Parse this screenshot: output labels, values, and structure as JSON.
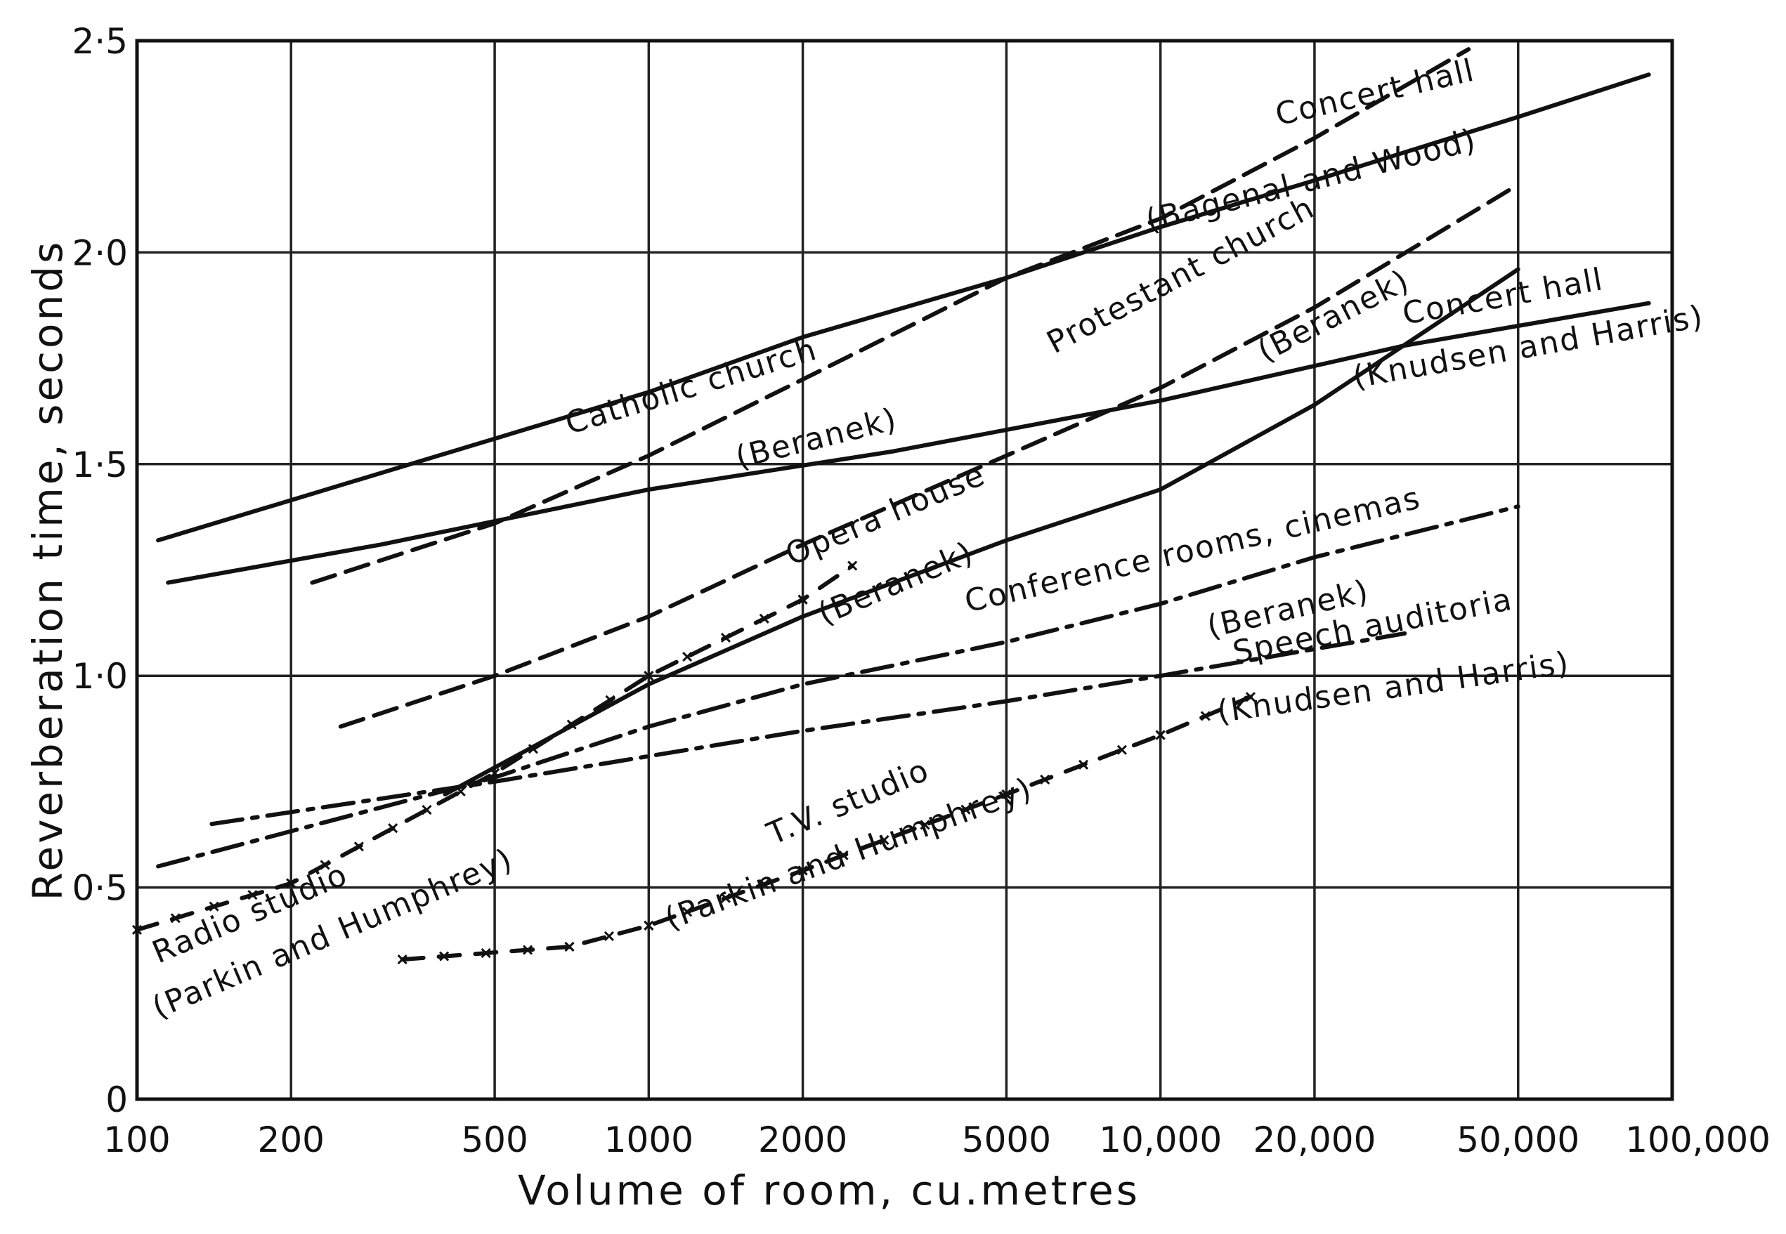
{
  "chart_data": {
    "type": "line",
    "xlabel": "Volume of room, cu.metres",
    "ylabel": "Reverberation time, seconds",
    "x_scale": "log",
    "xlim": [
      100,
      100000
    ],
    "ylim": [
      0,
      2.5
    ],
    "grid": true,
    "x_ticks": [
      {
        "value": 100,
        "label": "100"
      },
      {
        "value": 200,
        "label": "200"
      },
      {
        "value": 500,
        "label": "500"
      },
      {
        "value": 1000,
        "label": "1000"
      },
      {
        "value": 2000,
        "label": "2000"
      },
      {
        "value": 5000,
        "label": "5000"
      },
      {
        "value": 10000,
        "label": "10,000"
      },
      {
        "value": 20000,
        "label": "20,000"
      },
      {
        "value": 50000,
        "label": "50,000"
      },
      {
        "value": 100000,
        "label": "100,000"
      }
    ],
    "y_ticks": [
      {
        "value": 0,
        "label": "0"
      },
      {
        "value": 0.5,
        "label": "0·5"
      },
      {
        "value": 1.0,
        "label": "1·0"
      },
      {
        "value": 1.5,
        "label": "1·5"
      },
      {
        "value": 2.0,
        "label": "2·0"
      },
      {
        "value": 2.5,
        "label": "2·5"
      }
    ],
    "series": [
      {
        "id": "concert-hall-bagenal-wood",
        "style": "solid",
        "x": [
          110,
          500,
          1000,
          2000,
          5000,
          10000,
          20000,
          50000,
          90000
        ],
        "y": [
          1.32,
          1.56,
          1.67,
          1.8,
          1.94,
          2.06,
          2.17,
          2.32,
          2.42
        ]
      },
      {
        "id": "catholic-church-beranek",
        "style": "dashed",
        "x": [
          220,
          500,
          1000,
          2000,
          5000,
          10000,
          20000,
          40000
        ],
        "y": [
          1.22,
          1.36,
          1.52,
          1.7,
          1.94,
          2.08,
          2.27,
          2.48
        ]
      },
      {
        "id": "concert-hall-knudsen-harris",
        "style": "solid",
        "x": [
          115,
          300,
          1000,
          3000,
          10000,
          30000,
          90000
        ],
        "y": [
          1.22,
          1.31,
          1.44,
          1.53,
          1.65,
          1.78,
          1.88
        ]
      },
      {
        "id": "protestant-church-beranek",
        "style": "dashed",
        "x": [
          250,
          500,
          1000,
          2000,
          5000,
          10000,
          20000,
          50000
        ],
        "y": [
          0.88,
          1.0,
          1.14,
          1.31,
          1.52,
          1.68,
          1.87,
          2.16
        ]
      },
      {
        "id": "opera-house-beranek",
        "style": "solid",
        "x": [
          400,
          1000,
          2000,
          5000,
          10000,
          20000,
          50000
        ],
        "y": [
          0.72,
          0.98,
          1.14,
          1.32,
          1.44,
          1.64,
          1.96
        ]
      },
      {
        "id": "conference-rooms-cinemas-beranek",
        "style": "dashdot",
        "x": [
          110,
          500,
          1000,
          2000,
          5000,
          10000,
          20000,
          50000
        ],
        "y": [
          0.55,
          0.76,
          0.88,
          0.98,
          1.08,
          1.17,
          1.28,
          1.4
        ]
      },
      {
        "id": "speech-auditoria-knudsen-harris",
        "style": "dashdot",
        "x": [
          140,
          500,
          1000,
          2000,
          5000,
          10000,
          30000
        ],
        "y": [
          0.65,
          0.75,
          0.81,
          0.87,
          0.94,
          1.0,
          1.1
        ]
      },
      {
        "id": "radio-studio-parkin-humphrey",
        "style": "dash-x",
        "x": [
          100,
          200,
          500,
          1000,
          2000,
          2500
        ],
        "y": [
          0.4,
          0.51,
          0.77,
          1.0,
          1.18,
          1.26
        ]
      },
      {
        "id": "tv-studio-parkin-humphrey",
        "style": "dash-x",
        "x": [
          330,
          700,
          1000,
          2000,
          5000,
          10000,
          15000
        ],
        "y": [
          0.33,
          0.36,
          0.41,
          0.54,
          0.72,
          0.86,
          0.95
        ]
      }
    ],
    "annotations": [
      {
        "text": "Concert hall",
        "x": 17000,
        "y": 2.3,
        "angle": -13
      },
      {
        "text": "(Bagenal and Wood)",
        "x": 9500,
        "y": 2.05,
        "angle": -14
      },
      {
        "text": "Catholic church",
        "x": 700,
        "y": 1.57,
        "angle": -17
      },
      {
        "text": "(Beranek)",
        "x": 1500,
        "y": 1.49,
        "angle": -14
      },
      {
        "text": "Protestant church",
        "x": 6200,
        "y": 1.76,
        "angle": -28
      },
      {
        "text": "(Beranek)",
        "x": 16000,
        "y": 1.74,
        "angle": -27
      },
      {
        "text": "Concert hall",
        "x": 30000,
        "y": 1.83,
        "angle": -10
      },
      {
        "text": "(Knudsen and Harris)",
        "x": 24000,
        "y": 1.68,
        "angle": -10
      },
      {
        "text": "Opera house",
        "x": 1900,
        "y": 1.26,
        "angle": -23
      },
      {
        "text": "(Beranek)",
        "x": 2200,
        "y": 1.12,
        "angle": -23
      },
      {
        "text": "Conference rooms, cinemas",
        "x": 4200,
        "y": 1.15,
        "angle": -13
      },
      {
        "text": "(Beranek)",
        "x": 12500,
        "y": 1.09,
        "angle": -13
      },
      {
        "text": "Speech auditoria",
        "x": 14000,
        "y": 1.03,
        "angle": -11
      },
      {
        "text": "(Knudsen and Harris)",
        "x": 13000,
        "y": 0.89,
        "angle": -8
      },
      {
        "text": "T.V. studio",
        "x": 1750,
        "y": 0.6,
        "angle": -23
      },
      {
        "text": "(Parkin and Humphrey)",
        "x": 1100,
        "y": 0.4,
        "angle": -20
      },
      {
        "text": "Radio studio",
        "x": 110,
        "y": 0.32,
        "angle": -23
      },
      {
        "text": "(Parkin and Humphrey)",
        "x": 110,
        "y": 0.19,
        "angle": -23
      }
    ]
  }
}
